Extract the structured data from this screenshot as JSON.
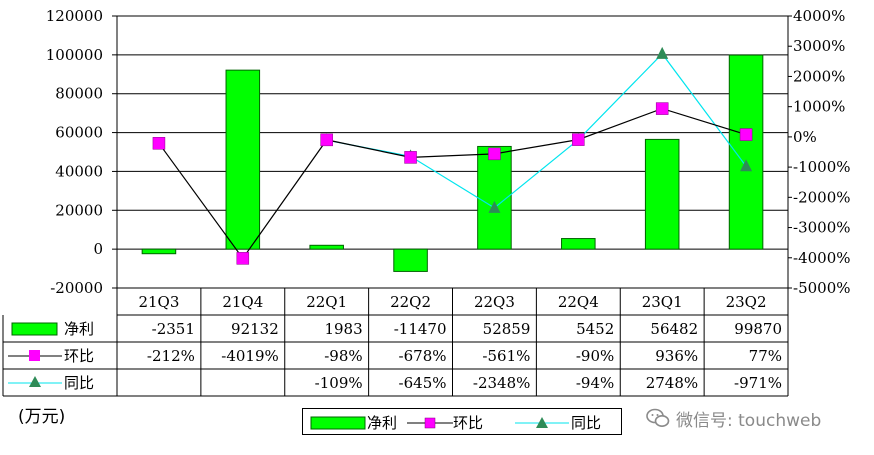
{
  "chart_data": {
    "type": "bar",
    "categories": [
      "21Q3",
      "21Q4",
      "22Q1",
      "22Q2",
      "22Q3",
      "22Q4",
      "23Q1",
      "23Q2"
    ],
    "unit_label": "(万元)",
    "y_left": {
      "ticks": [
        "120000",
        "100000",
        "80000",
        "60000",
        "40000",
        "20000",
        "0",
        "-20000"
      ],
      "min": -20000,
      "max": 120000
    },
    "y_right": {
      "ticks": [
        "4000%",
        "3000%",
        "2000%",
        "1000%",
        "0%",
        "-1000%",
        "-2000%",
        "-3000%",
        "-4000%",
        "-5000%"
      ],
      "min": -5000,
      "max": 4000
    },
    "grid": true,
    "colors": {
      "bar": "#00ff00",
      "bar_border": "#006400",
      "qoq_marker": "#ff00ff",
      "qoq_line": "#000000",
      "yoy_line": "#00e5ee",
      "yoy_marker": "#2e8b57"
    },
    "series": [
      {
        "name": "净利",
        "type": "bar",
        "axis": "left",
        "values": [
          -2351,
          92132,
          1983,
          -11470,
          52859,
          5452,
          56482,
          99870
        ]
      },
      {
        "name": "环比",
        "type": "line",
        "axis": "right",
        "marker": "square",
        "values": [
          -212,
          -4019,
          -98,
          -678,
          -561,
          -90,
          936,
          77
        ]
      },
      {
        "name": "同比",
        "type": "line",
        "axis": "right",
        "marker": "triangle",
        "values": [
          null,
          null,
          -109,
          -645,
          -2348,
          -94,
          2748,
          -971
        ]
      }
    ],
    "table": {
      "rows": [
        {
          "label": "净利",
          "cells": [
            "-2351",
            "92132",
            "1983",
            "-11470",
            "52859",
            "5452",
            "56482",
            "99870"
          ]
        },
        {
          "label": "环比",
          "cells": [
            "-212%",
            "-4019%",
            "-98%",
            "-678%",
            "-561%",
            "-90%",
            "936%",
            "77%"
          ]
        },
        {
          "label": "同比",
          "cells": [
            "",
            "",
            "-109%",
            "-645%",
            "-2348%",
            "-94%",
            "2748%",
            "-971%"
          ]
        }
      ]
    },
    "legend": {
      "position": "bottom",
      "items": [
        "净利",
        "环比",
        "同比"
      ]
    }
  },
  "watermark": {
    "text": "微信号: touchweb",
    "icon": "wechat-icon"
  }
}
